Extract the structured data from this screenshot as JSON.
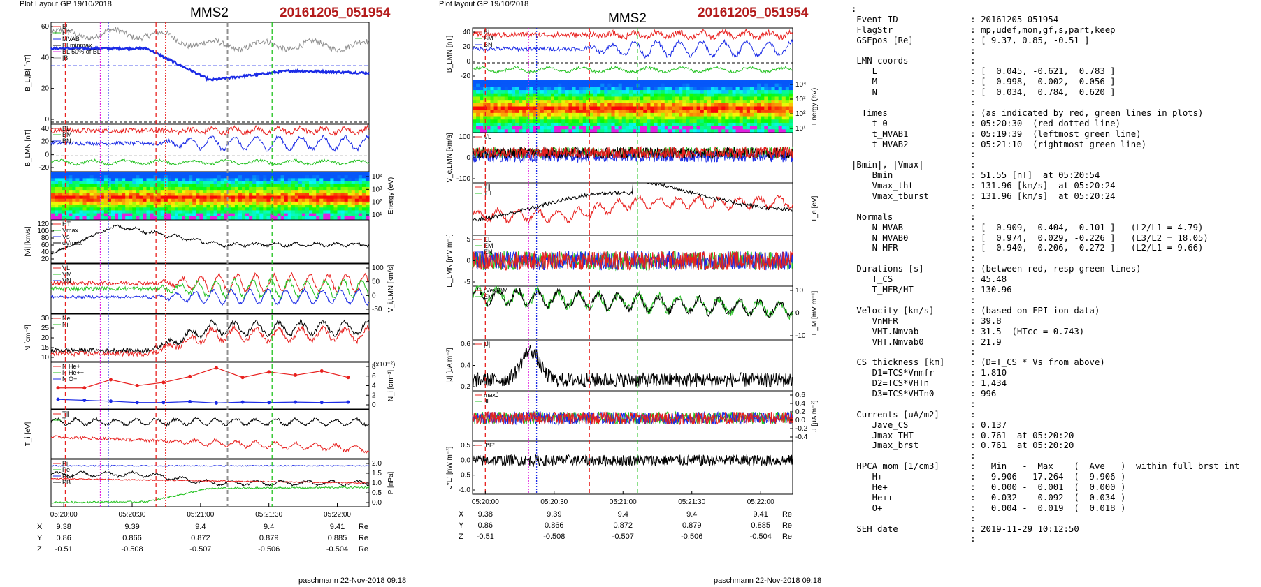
{
  "colors": {
    "red": "#e8201e",
    "green": "#22c21f",
    "blue": "#1b2be6",
    "black": "#000000",
    "magenta": "#e020e0",
    "gray": "#909090",
    "event_title": "#b31b1b"
  },
  "left_panel": {
    "header": "Plot Layout GP 19/10/2018",
    "title": "MMS2",
    "event": "20161205_051954",
    "footer": "paschmann 22-Nov-2018 09:18",
    "time_ticks": [
      "05:20:00",
      "05:20:30",
      "05:21:00",
      "05:21:30",
      "05:22:00"
    ],
    "position_rows": [
      {
        "label": "X",
        "values": [
          "9.38",
          "9.39",
          "9.4",
          "9.4",
          "9.41"
        ],
        "unit": "Re"
      },
      {
        "label": "Y",
        "values": [
          "0.86",
          "0.866",
          "0.872",
          "0.879",
          "0.885"
        ],
        "unit": "Re"
      },
      {
        "label": "Z",
        "values": [
          "-0.51",
          "-0.508",
          "-0.507",
          "-0.506",
          "-0.504"
        ],
        "unit": "Re"
      }
    ],
    "panels": [
      {
        "ylabel": "B_L,|B| [nT]",
        "yticks": [
          "60",
          "40",
          "20",
          "0"
        ],
        "legend": [
          "Bᴸ",
          "HT",
          "MVAB",
          "BLminmax",
          "BL 50% of BL",
          "|B|"
        ]
      },
      {
        "ylabel": "B_LMN [nT]",
        "yticks": [
          "40",
          "20",
          "0",
          "-20"
        ],
        "legend": [
          "BL",
          "BM",
          "BN"
        ]
      },
      {
        "ylabel_right": "Energy (eV)",
        "yticks_right": [
          "10⁴",
          "10³",
          "10²",
          "10¹"
        ]
      },
      {
        "ylabel": "|Vi| [km/s]",
        "yticks": [
          "120",
          "100",
          "80",
          "60",
          "40",
          "20"
        ],
        "legend": [
          "HT",
          "Vmax",
          "Vs",
          "dVmax"
        ]
      },
      {
        "ylabel_right": "V_i,LMN [km/s]",
        "yticks_right": [
          "100",
          "50",
          "0",
          "-50"
        ],
        "legend": [
          "VL",
          "VM",
          "VN"
        ]
      },
      {
        "ylabel": "N [cm⁻³]",
        "yticks": [
          "30",
          "25",
          "20",
          "15",
          "10"
        ],
        "legend": [
          "Ne",
          "Ni"
        ]
      },
      {
        "ylabel_right": "N_i [cm⁻³]",
        "scale": "(x10⁻²)",
        "yticks_right": [
          "8",
          "6",
          "4",
          "2",
          "0"
        ],
        "legend": [
          "N He+",
          "N He++",
          "N O+"
        ]
      },
      {
        "ylabel": "T_i [eV]",
        "legend": [
          "T∥",
          "T⊥"
        ]
      },
      {
        "ylabel_right": "P [nPa]",
        "yticks_right": [
          "2.0",
          "1.5",
          "1.0",
          "0.5",
          "0.0"
        ],
        "legend": [
          "Pi",
          "Pe",
          "Ptot",
          "PB"
        ]
      }
    ]
  },
  "right_panel": {
    "header": "Plot layout GP 19/10/2018",
    "title": "MMS2",
    "event": "20161205_051954",
    "footer": "paschmann 22-Nov-2018 09:18",
    "time_ticks": [
      "05:20:00",
      "05:20:30",
      "05:21:00",
      "05:21:30",
      "05:22:00"
    ],
    "position_rows": [
      {
        "label": "X",
        "values": [
          "9.38",
          "9.39",
          "9.4",
          "9.4",
          "9.41"
        ],
        "unit": "Re"
      },
      {
        "label": "Y",
        "values": [
          "0.86",
          "0.866",
          "0.872",
          "0.879",
          "0.885"
        ],
        "unit": "Re"
      },
      {
        "label": "Z",
        "values": [
          "-0.51",
          "-0.508",
          "-0.507",
          "-0.506",
          "-0.504"
        ],
        "unit": "Re"
      }
    ],
    "panels": [
      {
        "ylabel": "B_LMN [nT]",
        "yticks": [
          "40",
          "20",
          "0",
          "-20"
        ],
        "legend": [
          "BL",
          "BM",
          "BN"
        ]
      },
      {
        "ylabel_right": "Energy (eV)",
        "yticks_right": [
          "10⁴",
          "10³",
          "10²",
          "10¹"
        ]
      },
      {
        "ylabel": "V_e,LMN [km/s]",
        "yticks": [
          "100",
          "0",
          "-100"
        ],
        "legend": [
          "VL"
        ]
      },
      {
        "ylabel_right": "T_e [eV]",
        "legend": [
          "T∥",
          "T⊥"
        ]
      },
      {
        "ylabel": "E_LMN [mV m⁻¹]",
        "yticks": [
          "5",
          "0",
          "-5"
        ],
        "legend": [
          "EL",
          "EM",
          "EN"
        ]
      },
      {
        "ylabel_right": "E_M [mV m⁻¹]",
        "yticks_right": [
          "10",
          "0",
          "-10"
        ],
        "legend": [
          "(VexB)M",
          "EM"
        ]
      },
      {
        "ylabel": "|J| [μA m⁻²]",
        "yticks": [
          "0.6",
          "0.4",
          "0.2"
        ],
        "legend": [
          "|J|"
        ]
      },
      {
        "ylabel_right": "J [μA m⁻²]",
        "yticks_right": [
          "0.6",
          "0.4",
          "0.2",
          "0.0",
          "-0.2",
          "-0.4"
        ],
        "legend": [
          "maxJ",
          "JL"
        ]
      },
      {
        "ylabel": "J*E' [nW m⁻³]",
        "yticks": [
          "0.5",
          "0.0",
          "-0.5",
          "-1.0"
        ],
        "legend": [
          "J*E'"
        ]
      }
    ]
  },
  "info": [
    ":",
    " Event ID              : 20161205_051954",
    " FlagStr               : mp,udef,mon,gf,s,part,keep",
    " GSEpos [Re]           : [ 9.37, 0.85, -0.51 ]",
    "                       :",
    " LMN coords            :",
    "    L                  : [  0.045, -0.621,  0.783 ]",
    "    M                  : [ -0.998, -0.002,  0.056 ]",
    "    N                  : [  0.034,  0.784,  0.620 ]",
    "                       :",
    "  Times                : (as indicated by red, green lines in plots)",
    "    t_0                : 05:20:30  (red dotted line)",
    "    t_MVAB1            : 05:19:39  (leftmost green line)",
    "    t_MVAB2            : 05:21:10  (rightmost green line)",
    "                       :",
    "|Bmin|, |Vmax|         :",
    "    Bmin               : 51.55 [nT]  at 05:20:54",
    "    Vmax_tht           : 131.96 [km/s]  at 05:20:24",
    "    Vmax_tburst        : 131.96 [km/s]  at 05:20:24",
    "                       :",
    " Normals               :",
    "    N MVAB             : [  0.909,  0.404,  0.101 ]   (L2/L1 = 4.79)",
    "    N MVAB0            : [  0.974,  0.029, -0.226 ]   (L3/L2 = 18.05)",
    "    N MFR              : [ -0.940, -0.206,  0.272 ]   (L2/L1 = 9.66)",
    "                       :",
    " Durations [s]         : (between red, resp green lines)",
    "    T_CS               : 45.48",
    "    T_MFR/HT           : 130.96",
    "                       :",
    " Velocity [km/s]       : (based on FPI ion data)",
    "    VnMFR              : 39.8",
    "    VHT.Nmvab          : 31.5  (HTcc = 0.743)",
    "    VHT.Nmvab0         : 21.9",
    "                       :",
    " CS thickness [km]     : (D=T_CS * Vs from above)",
    "    D1=TCS*Vnmfr       : 1,810",
    "    D2=TCS*VHTn        : 1,434",
    "    D3=TCS*VHTn0       : 996",
    "                       :",
    " Currents [uA/m2]      :",
    "    Jave_CS            : 0.137",
    "    Jmax_THT           : 0.761  at 05:20:20",
    "    Jmax_brst          : 0.761  at 05:20:20",
    "                       :",
    " HPCA mom [1/cm3]      :   Min   -  Max    (  Ave   )  within full brst int",
    "    H+                 :   9.906 - 17.264  (  9.906 )",
    "    He+                :   0.000 -  0.001  (  0.000 )",
    "    He++               :   0.032 -  0.092  (  0.034 )",
    "    O+                 :   0.004 -  0.019  (  0.018 )",
    "                       :",
    " SEH date              : 2019-11-29 10:12:50",
    "                       :"
  ],
  "chart_data": [
    {
      "type": "line",
      "title": "MMS2",
      "subtitle": "20161205_051954",
      "x": [
        "05:20:00",
        "05:20:30",
        "05:21:00",
        "05:21:30",
        "05:22:00"
      ],
      "series": [
        {
          "name": "BL",
          "values": [
            52,
            40,
            27,
            35,
            30
          ]
        },
        {
          "name": "|B|",
          "values": [
            62,
            58,
            55,
            57,
            56
          ]
        }
      ],
      "ylim": [
        0,
        70
      ]
    },
    {
      "type": "line",
      "title": "MMS2",
      "subtitle": "20161205_051954",
      "x": [
        "05:20:00",
        "05:20:30",
        "05:21:00",
        "05:21:30",
        "05:22:00"
      ],
      "series": [
        {
          "name": "|J|",
          "values": [
            0.15,
            0.45,
            0.15,
            0.12,
            0.13
          ]
        }
      ],
      "ylim": [
        0,
        0.7
      ]
    }
  ]
}
